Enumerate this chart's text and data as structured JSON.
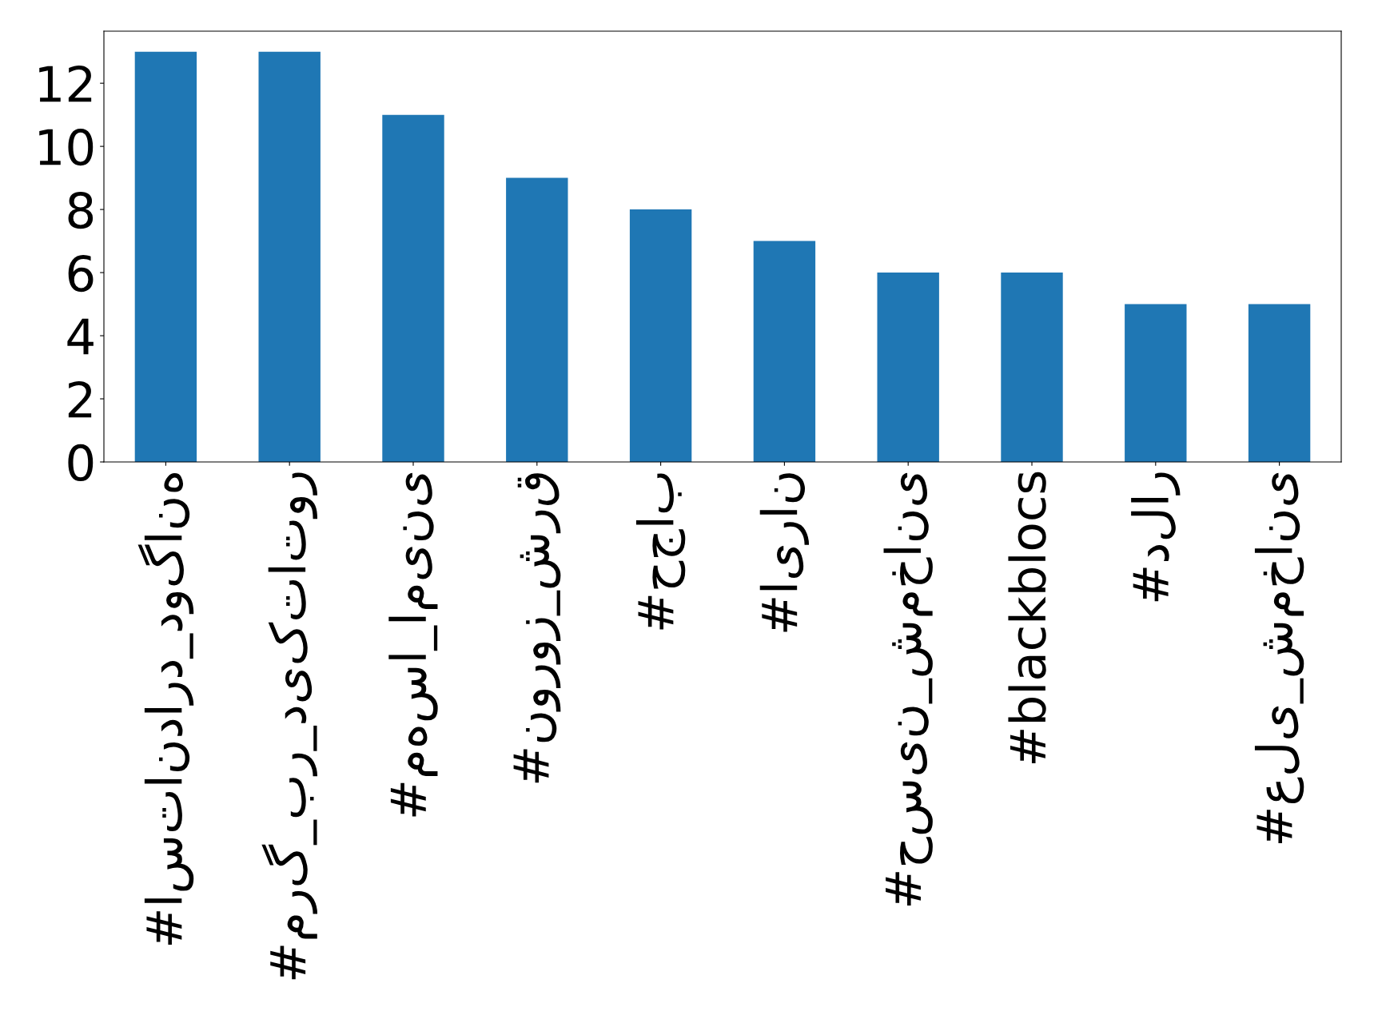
{
  "chart_data": {
    "type": "bar",
    "categories": [
      "#استاندارد_دوگانه",
      "#مرگ_بر_دیکتاتور",
      "#مهسا_امینی",
      "#نوروز_شرق",
      "#حجاب",
      "#ایران",
      "#حسین_شمخانی",
      "#blackblocs",
      "#دلار",
      "#علی_شمخانی"
    ],
    "values": [
      13,
      13,
      11,
      9,
      8,
      7,
      6,
      6,
      5,
      5
    ],
    "color": "#1f77b4",
    "ylim": [
      0,
      13.65
    ],
    "yticks": [
      0,
      2,
      4,
      6,
      8,
      10,
      12
    ],
    "grid": false,
    "legend": false
  }
}
